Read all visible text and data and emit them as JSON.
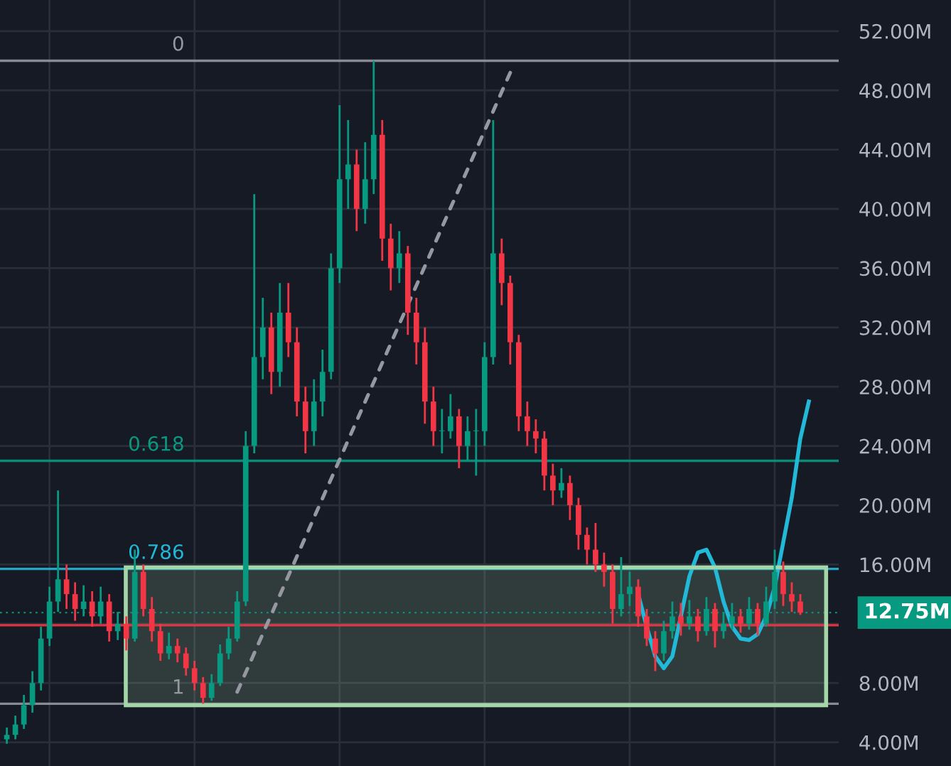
{
  "chart_data": {
    "type": "candlestick",
    "categories": [
      null,
      null,
      null,
      null,
      null,
      null,
      null,
      null,
      null,
      null,
      null,
      null,
      null,
      null,
      null,
      null,
      null,
      null,
      null,
      null,
      null,
      null,
      null,
      null,
      null,
      null,
      null,
      null,
      null,
      null,
      null,
      null,
      null,
      null,
      null,
      null,
      null,
      null,
      null,
      null,
      null,
      null,
      null,
      null,
      null,
      null,
      null,
      null,
      null,
      null,
      null,
      null,
      null,
      null,
      null,
      null,
      null,
      null,
      null,
      null,
      null,
      null,
      null,
      null,
      null,
      null,
      null,
      null,
      null,
      null,
      null,
      null,
      null,
      null,
      null,
      null,
      null,
      null,
      null,
      null,
      null,
      null,
      null,
      null,
      null,
      null,
      null,
      null,
      null,
      null,
      null,
      null,
      null,
      null,
      null,
      null,
      null,
      null
    ],
    "ohlc": [
      [
        4.2,
        5.0,
        3.9,
        4.5
      ],
      [
        4.5,
        5.8,
        4.2,
        5.2
      ],
      [
        5.2,
        7.2,
        4.9,
        6.5
      ],
      [
        6.5,
        8.8,
        6.0,
        8.0
      ],
      [
        8.0,
        11.8,
        7.5,
        11.0
      ],
      [
        11.0,
        14.5,
        10.5,
        13.5
      ],
      [
        13.5,
        21.0,
        12.8,
        15.0
      ],
      [
        15.0,
        16.0,
        13.0,
        14.0
      ],
      [
        14.0,
        14.8,
        12.2,
        13.0
      ],
      [
        13.0,
        14.6,
        12.5,
        13.5
      ],
      [
        13.5,
        14.2,
        11.8,
        12.5
      ],
      [
        12.5,
        14.5,
        12.0,
        13.5
      ],
      [
        13.5,
        14.0,
        10.8,
        11.5
      ],
      [
        11.5,
        12.8,
        10.9,
        12.0
      ],
      [
        12.0,
        12.5,
        10.2,
        11.0
      ],
      [
        11.0,
        17.0,
        10.8,
        15.5
      ],
      [
        15.5,
        16.0,
        12.5,
        13.0
      ],
      [
        13.0,
        13.8,
        10.8,
        11.5
      ],
      [
        11.5,
        12.0,
        9.5,
        10.0
      ],
      [
        10.0,
        11.4,
        9.6,
        10.5
      ],
      [
        10.5,
        11.0,
        9.4,
        10.0
      ],
      [
        10.0,
        10.4,
        8.5,
        9.0
      ],
      [
        9.0,
        9.5,
        7.5,
        8.0
      ],
      [
        8.0,
        8.4,
        6.6,
        7.0
      ],
      [
        7.0,
        8.6,
        6.8,
        8.0
      ],
      [
        8.0,
        10.6,
        7.8,
        10.0
      ],
      [
        10.0,
        11.8,
        9.6,
        11.0
      ],
      [
        11.0,
        14.2,
        10.8,
        13.5
      ],
      [
        13.5,
        25.0,
        13.2,
        24.0
      ],
      [
        24.0,
        41.0,
        23.5,
        30.0
      ],
      [
        30.0,
        34.0,
        28.5,
        32.0
      ],
      [
        32.0,
        33.0,
        27.5,
        29.0
      ],
      [
        29.0,
        35.0,
        28.0,
        33.0
      ],
      [
        33.0,
        35.0,
        30.0,
        31.0
      ],
      [
        31.0,
        32.0,
        26.0,
        27.0
      ],
      [
        27.0,
        28.0,
        23.5,
        25.0
      ],
      [
        25.0,
        28.5,
        24.0,
        27.0
      ],
      [
        27.0,
        30.5,
        26.0,
        29.0
      ],
      [
        29.0,
        37.0,
        28.5,
        36.0
      ],
      [
        36.0,
        47.0,
        35.0,
        42.0
      ],
      [
        42.0,
        46.0,
        40.0,
        43.0
      ],
      [
        43.0,
        44.0,
        38.5,
        40.0
      ],
      [
        40.0,
        44.5,
        39.0,
        42.0
      ],
      [
        42.0,
        50.0,
        41.0,
        45.0
      ],
      [
        45.0,
        46.0,
        36.5,
        38.0
      ],
      [
        38.0,
        39.0,
        34.5,
        36.0
      ],
      [
        36.0,
        38.5,
        35.0,
        37.0
      ],
      [
        37.0,
        37.5,
        31.5,
        33.0
      ],
      [
        33.0,
        34.0,
        29.5,
        31.0
      ],
      [
        31.0,
        32.0,
        25.5,
        27.0
      ],
      [
        27.0,
        28.0,
        24.0,
        25.0
      ],
      [
        25.0,
        26.5,
        23.5,
        25.0
      ],
      [
        25.0,
        27.5,
        24.5,
        26.0
      ],
      [
        26.0,
        26.5,
        22.5,
        24.0
      ],
      [
        24.0,
        26.0,
        23.0,
        25.0
      ],
      [
        25.0,
        26.5,
        22.0,
        25.0
      ],
      [
        25.0,
        31.0,
        24.0,
        30.0
      ],
      [
        30.0,
        46.0,
        29.5,
        37.0
      ],
      [
        37.0,
        38.0,
        33.5,
        35.0
      ],
      [
        35.0,
        35.5,
        29.5,
        31.0
      ],
      [
        31.0,
        31.5,
        25.0,
        26.0
      ],
      [
        26.0,
        27.0,
        24.0,
        25.0
      ],
      [
        25.0,
        25.8,
        23.5,
        24.5
      ],
      [
        24.5,
        25.0,
        21.0,
        22.0
      ],
      [
        22.0,
        22.8,
        20.0,
        21.0
      ],
      [
        21.0,
        22.5,
        20.5,
        21.5
      ],
      [
        21.5,
        22.0,
        19.0,
        20.0
      ],
      [
        20.0,
        20.5,
        17.0,
        18.0
      ],
      [
        18.0,
        18.5,
        16.0,
        17.0
      ],
      [
        17.0,
        18.8,
        15.5,
        16.0
      ],
      [
        16.0,
        16.8,
        14.5,
        15.5
      ],
      [
        15.5,
        16.0,
        12.0,
        13.0
      ],
      [
        13.0,
        16.5,
        12.5,
        14.0
      ],
      [
        14.0,
        15.5,
        13.2,
        14.5
      ],
      [
        14.5,
        15.0,
        11.8,
        12.5
      ],
      [
        12.5,
        13.0,
        10.5,
        11.0
      ],
      [
        11.0,
        11.5,
        8.8,
        10.0
      ],
      [
        10.0,
        12.2,
        9.5,
        11.5
      ],
      [
        11.5,
        13.5,
        11.0,
        12.5
      ],
      [
        12.5,
        13.4,
        11.2,
        12.0
      ],
      [
        12.0,
        13.6,
        11.6,
        12.5
      ],
      [
        12.5,
        13.0,
        10.8,
        11.5
      ],
      [
        11.5,
        13.8,
        11.2,
        13.0
      ],
      [
        13.0,
        13.4,
        10.4,
        11.5
      ],
      [
        11.5,
        12.8,
        11.0,
        12.0
      ],
      [
        12.0,
        13.4,
        11.6,
        12.5
      ],
      [
        12.5,
        13.0,
        11.4,
        12.0
      ],
      [
        12.0,
        13.8,
        11.6,
        13.0
      ],
      [
        13.0,
        13.4,
        11.2,
        12.0
      ],
      [
        12.0,
        14.5,
        11.8,
        13.5
      ],
      [
        13.5,
        17.0,
        13.0,
        15.5
      ],
      [
        15.5,
        16.2,
        13.2,
        14.0
      ],
      [
        14.0,
        14.8,
        12.8,
        13.5
      ],
      [
        13.5,
        14.0,
        12.6,
        12.75
      ],
      null,
      null,
      null,
      null
    ],
    "series": [
      {
        "type": "line",
        "color": "#22b8d8",
        "line_style": "solid",
        "values": [
          null,
          null,
          null,
          null,
          null,
          null,
          null,
          null,
          null,
          null,
          null,
          null,
          null,
          null,
          null,
          null,
          null,
          null,
          null,
          null,
          null,
          null,
          null,
          null,
          null,
          null,
          null,
          null,
          null,
          null,
          null,
          null,
          null,
          null,
          null,
          null,
          null,
          null,
          null,
          null,
          null,
          null,
          null,
          null,
          null,
          null,
          null,
          null,
          null,
          null,
          null,
          null,
          null,
          null,
          null,
          null,
          null,
          null,
          null,
          null,
          null,
          null,
          null,
          null,
          null,
          null,
          null,
          null,
          null,
          null,
          null,
          null,
          null,
          null,
          14.0,
          11.8,
          9.8,
          9.0,
          9.8,
          12.5,
          15.2,
          16.8,
          17.0,
          15.8,
          13.5,
          11.8,
          11.0,
          10.9,
          11.3,
          12.5,
          14.5,
          17.5,
          20.5,
          24.5,
          27.0,
          null,
          null,
          null
        ]
      },
      {
        "type": "line",
        "color": "#9598a1",
        "line_style": "dashed",
        "values": [
          null,
          null,
          null,
          null,
          null,
          null,
          null,
          null,
          null,
          null,
          null,
          null,
          null,
          null,
          null,
          null,
          null,
          null,
          null,
          null,
          null,
          null,
          null,
          null,
          null,
          null,
          null,
          7.4,
          null,
          null,
          null,
          null,
          null,
          null,
          null,
          null,
          null,
          null,
          null,
          null,
          null,
          null,
          null,
          null,
          null,
          null,
          null,
          null,
          null,
          null,
          null,
          null,
          null,
          null,
          null,
          null,
          null,
          null,
          null,
          49.2,
          null,
          null,
          null,
          null,
          null,
          null,
          null,
          null,
          null,
          null,
          null,
          null,
          null,
          null,
          null,
          null,
          null,
          null,
          null,
          null,
          null,
          null,
          null,
          null,
          null,
          null,
          null,
          null,
          null,
          null,
          null,
          null,
          null,
          null,
          null,
          null,
          null,
          null
        ]
      }
    ],
    "annotations": [
      {
        "text": "0",
        "y": 50
      },
      {
        "text": "0.618",
        "y": 23
      },
      {
        "text": "0.786",
        "y": 15.7
      },
      {
        "text": "1",
        "y": 6.6
      }
    ],
    "ylim": [
      2.4,
      54.1
    ],
    "yticks": [
      {
        "value": 4,
        "label": "4.00M"
      },
      {
        "value": 8,
        "label": "8.00M"
      },
      {
        "value": 12,
        "label": null
      },
      {
        "value": 16,
        "label": "16.00M"
      },
      {
        "value": 20,
        "label": "20.00M"
      },
      {
        "value": 24,
        "label": "24.00M"
      },
      {
        "value": 28,
        "label": "28.00M"
      },
      {
        "value": 32,
        "label": "32.00M"
      },
      {
        "value": 36,
        "label": "36.00M"
      },
      {
        "value": 40,
        "label": "40.00M"
      },
      {
        "value": 44,
        "label": "44.00M"
      },
      {
        "value": 48,
        "label": "48.00M"
      },
      {
        "value": 52,
        "label": "52.00M"
      }
    ],
    "grid": true,
    "ref_lines": [
      {
        "axis": "y",
        "value": 50,
        "color": "#9598a1",
        "line_style": "solid"
      },
      {
        "axis": "y",
        "value": 23,
        "color": "#089981",
        "line_style": "solid"
      },
      {
        "axis": "y",
        "value": 15.7,
        "color": "#22b8d8",
        "line_style": "solid"
      },
      {
        "axis": "y",
        "value": 6.6,
        "color": "#9598a1",
        "line_style": "solid"
      },
      {
        "axis": "y",
        "value": 11.9,
        "color": "#f23645",
        "line_style": "solid"
      },
      {
        "axis": "y",
        "value": 12.75,
        "label": "12.75M",
        "color": "#089981",
        "line_style": "dotted"
      }
    ],
    "bands": [
      {
        "axis": "y",
        "from": 6.5,
        "to": 15.8,
        "color": "#a5d6a7"
      }
    ]
  }
}
